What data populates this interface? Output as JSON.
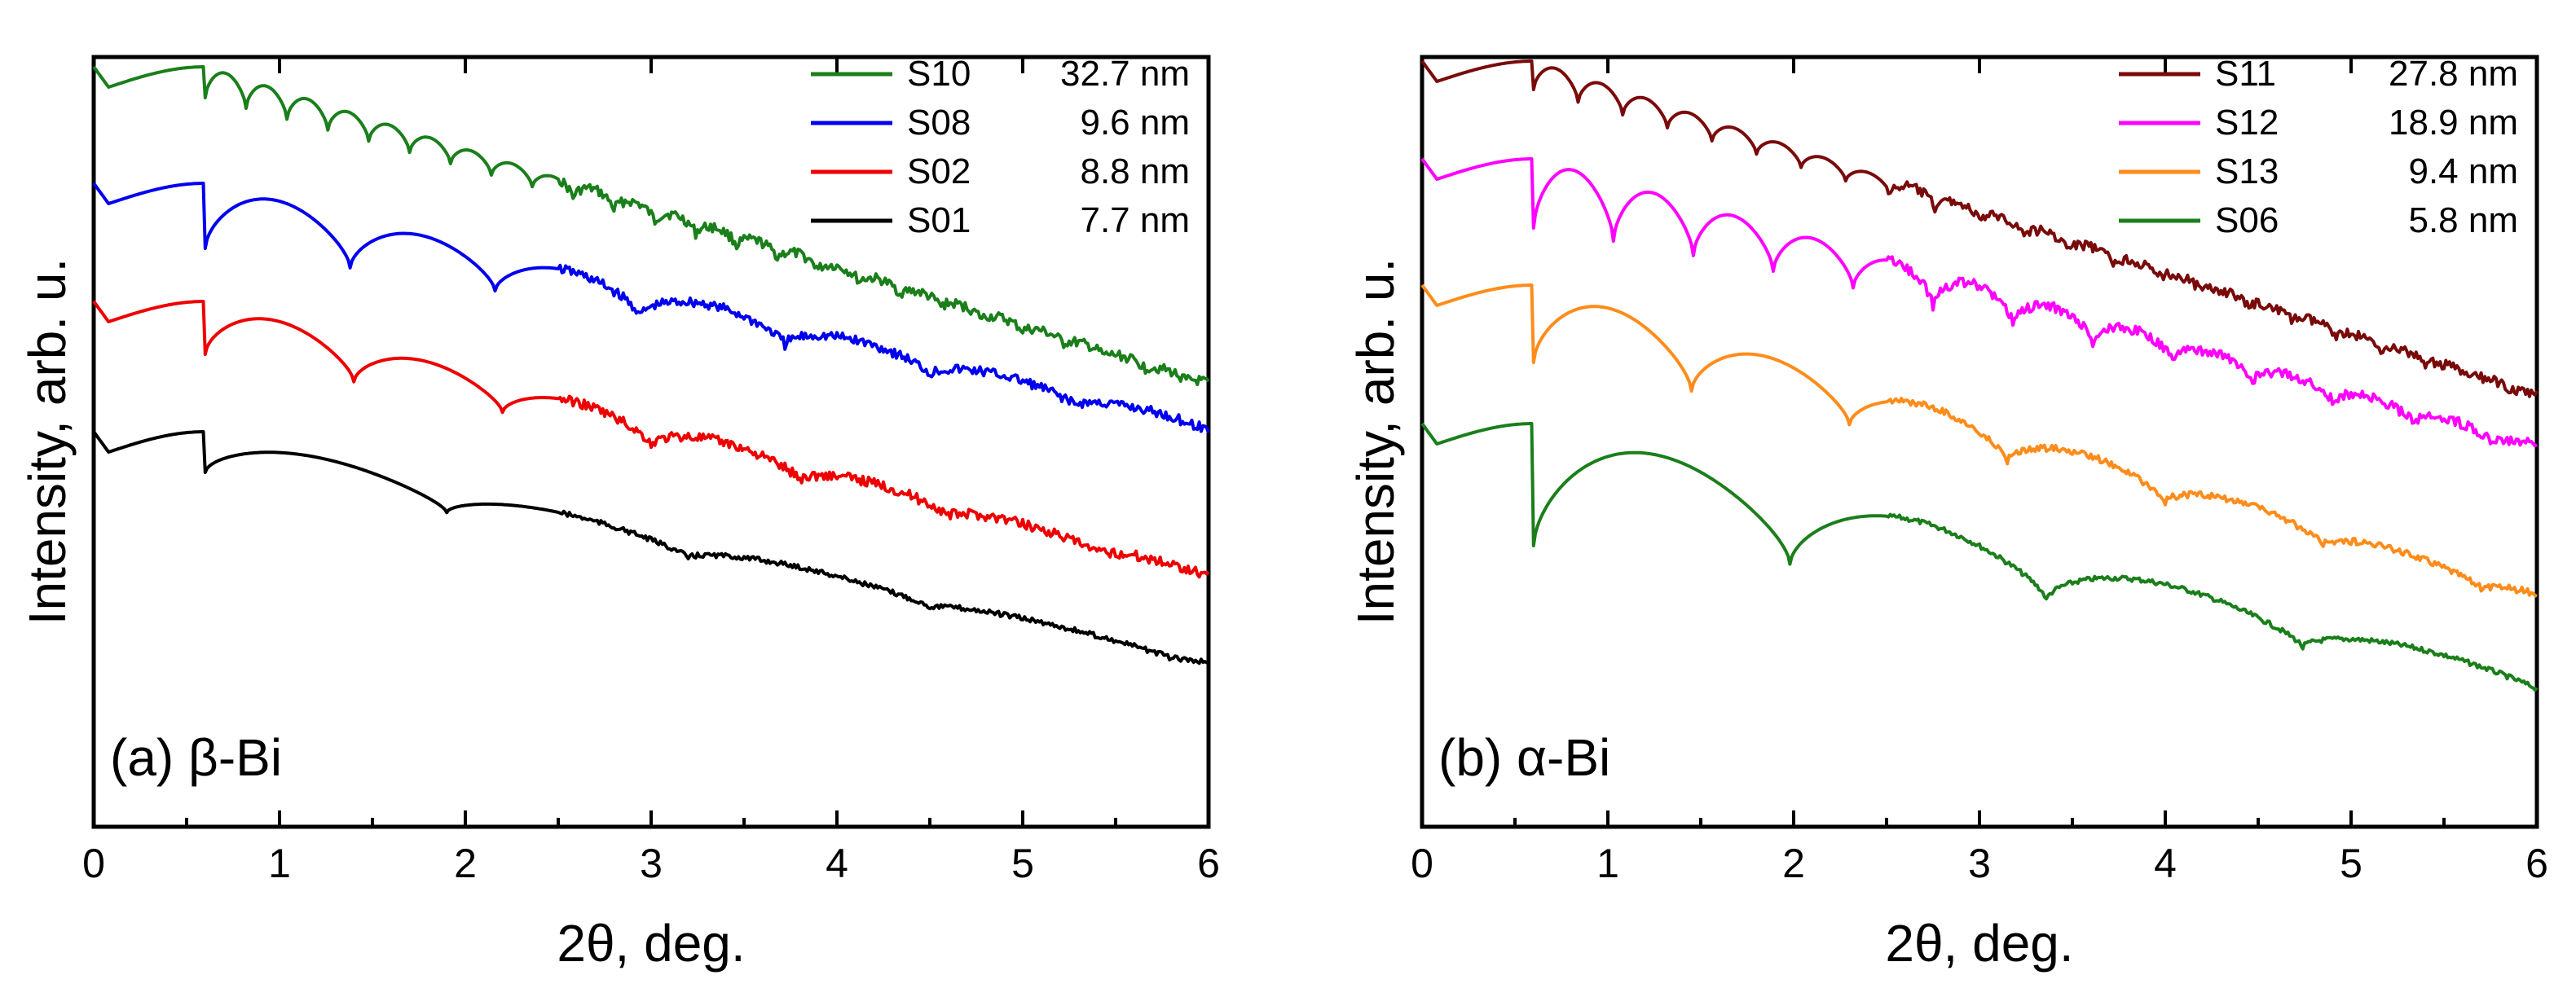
{
  "figure_labels": {
    "panel_a": "(a) β-Bi",
    "panel_b": "(b) α-Bi"
  },
  "chart_data": [
    {
      "type": "line",
      "title": "",
      "panel_label": "(a) β-Bi",
      "xlabel": "2θ, deg.",
      "ylabel": "Intensity, arb. u.",
      "xlim": [
        0,
        6
      ],
      "xticks": [
        "0",
        "1",
        "2",
        "3",
        "4",
        "5",
        "6"
      ],
      "yticks": [],
      "ylim_description": "log intensity, curves vertically offset (no tick labels)",
      "legend_position": "top-right",
      "series": [
        {
          "name": "S10",
          "label": "32.7 nm",
          "color": "#1a7f1a",
          "thickness_nm": 32.7,
          "offset": 0
        },
        {
          "name": "S08",
          "label": "9.6 nm",
          "color": "#0000ee",
          "thickness_nm": 9.6,
          "offset": 1
        },
        {
          "name": "S02",
          "label": "8.8 nm",
          "color": "#ee0000",
          "thickness_nm": 8.8,
          "offset": 2
        },
        {
          "name": "S01",
          "label": "7.7 nm",
          "color": "#000000",
          "thickness_nm": 7.7,
          "offset": 3
        }
      ]
    },
    {
      "type": "line",
      "title": "",
      "panel_label": "(b) α-Bi",
      "xlabel": "2θ, deg.",
      "ylabel": "Intensity, arb. u.",
      "xlim": [
        0,
        6
      ],
      "xticks": [
        "0",
        "1",
        "2",
        "3",
        "4",
        "5",
        "6"
      ],
      "yticks": [],
      "ylim_description": "log intensity, curves vertically offset (no tick labels)",
      "legend_position": "top-right",
      "series": [
        {
          "name": "S11",
          "label": "27.8 nm",
          "color": "#7a0a0a",
          "thickness_nm": 27.8,
          "offset": 0
        },
        {
          "name": "S12",
          "label": "18.9 nm",
          "color": "#ff00ff",
          "thickness_nm": 18.9,
          "offset": 1
        },
        {
          "name": "S13",
          "label": "9.4 nm",
          "color": "#ff8c1a",
          "thickness_nm": 9.4,
          "offset": 2
        },
        {
          "name": "S06",
          "label": "5.8 nm",
          "color": "#1a7f1a",
          "thickness_nm": 5.8,
          "offset": 3
        }
      ]
    }
  ]
}
